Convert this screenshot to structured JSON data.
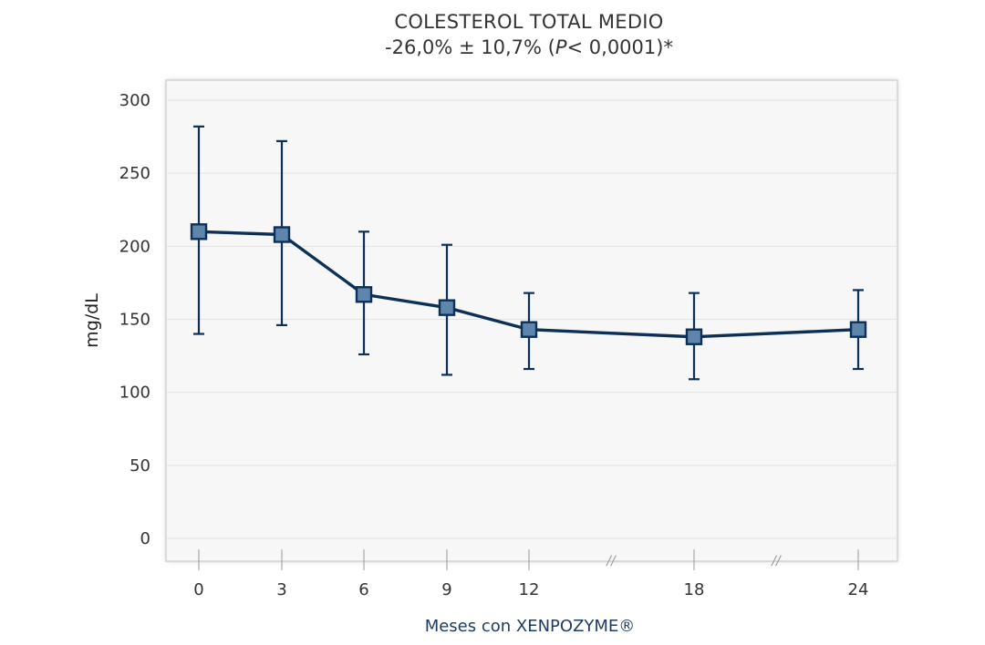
{
  "chart_data": {
    "type": "line",
    "title": "COLESTEROL TOTAL MEDIO",
    "subtitle": {
      "prefix": "-26,0% ± 10,7% (",
      "p": "P",
      "suffix": "< 0,0001)*"
    },
    "xlabel": "Meses con XENPOZYME®",
    "ylabel": "mg/dL",
    "x": [
      0,
      3,
      6,
      9,
      12,
      18,
      24
    ],
    "x_tick_labels": [
      "0",
      "3",
      "6",
      "9",
      "12",
      "18",
      "24"
    ],
    "axis_break_marks": [
      "//",
      "//"
    ],
    "y_ticks": [
      0,
      50,
      100,
      150,
      200,
      250,
      300
    ],
    "ylim": [
      0,
      300
    ],
    "grid": true,
    "series": [
      {
        "values": [
          210,
          208,
          167,
          158,
          143,
          138,
          143
        ],
        "error_upper": [
          282,
          272,
          210,
          201,
          168,
          168,
          170
        ],
        "error_lower": [
          140,
          146,
          126,
          112,
          116,
          109,
          116
        ],
        "marker": "square"
      }
    ]
  },
  "colors": {
    "line": "#0d3057",
    "marker_fill": "#5e86ad",
    "plot_bg": "#f7f7f7",
    "grid": "#e2e2e2",
    "frame": "#d3d3d3",
    "xlabel": "#1f3b64"
  }
}
